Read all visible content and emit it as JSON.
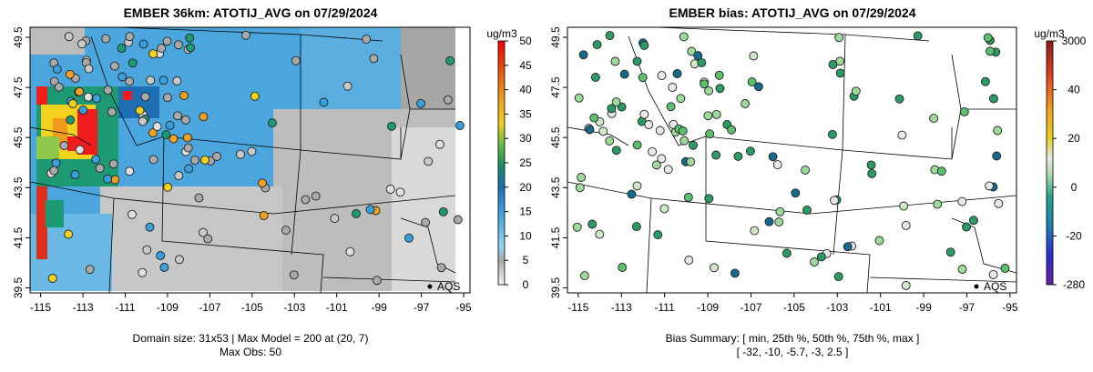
{
  "left_panel": {
    "title": "EMBER 36km: ATOTIJ_AVG on 07/29/2024",
    "unit": "ug/m3",
    "colorbar_ticks": [
      "50",
      "45",
      "40",
      "35",
      "30",
      "25",
      "20",
      "15",
      "10",
      "5",
      "0"
    ],
    "footer_line1": "Domain size: 31x53 | Max Model = 200 at (20, 7)",
    "footer_line2": "Max Obs: 50"
  },
  "right_panel": {
    "title": "EMBER bias: ATOTIJ_AVG on 07/29/2024",
    "unit": "ug/m3",
    "colorbar_ticks": [
      "3000",
      "40",
      "20",
      "0",
      "-20",
      "-280"
    ],
    "footer_line1": "Bias Summary: [ min, 25th %, 50th %, 75th %, max ]",
    "footer_line2": "[ -32,  -10,  -5.7,  -3,  2.5 ]"
  },
  "axes": {
    "x_ticks": [
      "-115",
      "-113",
      "-111",
      "-109",
      "-107",
      "-105",
      "-103",
      "-101",
      "-99",
      "-97",
      "-95"
    ],
    "y_ticks": [
      "49.5",
      "47.5",
      "45.5",
      "43.5",
      "41.5",
      "39.5"
    ],
    "xlim": [
      -115.5,
      -94.7
    ],
    "ylim": [
      39.3,
      49.9
    ]
  },
  "city_label": "AQS",
  "colors": {
    "land": "#ffffff",
    "border": "#000000"
  }
}
